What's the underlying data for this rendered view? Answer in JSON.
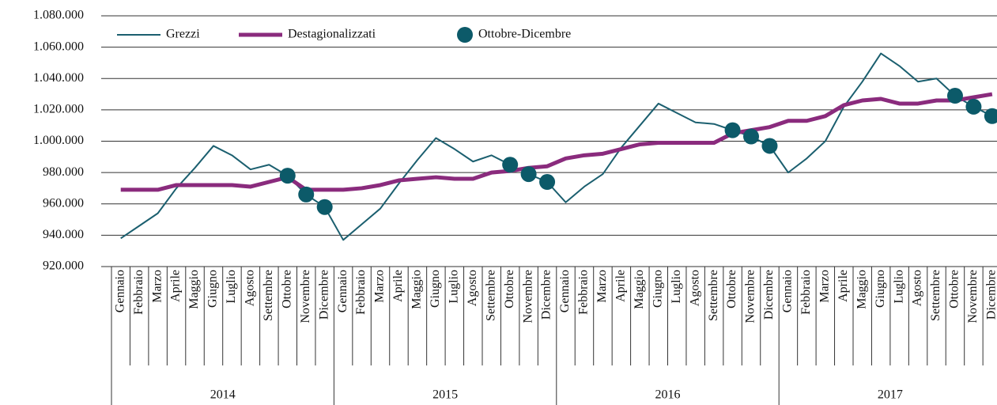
{
  "chart_data": {
    "type": "line",
    "categories": [
      "Gennaio",
      "Febbraio",
      "Marzo",
      "Aprile",
      "Maggio",
      "Giugno",
      "Luglio",
      "Agosto",
      "Settembre",
      "Ottobre",
      "Novembre",
      "Dicembre",
      "Gennaio",
      "Febbraio",
      "Marzo",
      "Aprile",
      "Maggio",
      "Giugno",
      "Luglio",
      "Agosto",
      "Settembre",
      "Ottobre",
      "Novembre",
      "Dicembre",
      "Gennaio",
      "Febbraio",
      "Marzo",
      "Aprile",
      "Maggio",
      "Giugno",
      "Luglio",
      "Agosto",
      "Settembre",
      "Ottobre",
      "Novembre",
      "Dicembre",
      "Gennaio",
      "Febbraio",
      "Marzo",
      "Aprile",
      "Maggio",
      "Giugno",
      "Luglio",
      "Agosto",
      "Settembre",
      "Ottobre",
      "Novembre",
      "Dicembre"
    ],
    "year_groups": [
      "2014",
      "2015",
      "2016",
      "2017"
    ],
    "series": [
      {
        "name": "Grezzi",
        "color": "#1b5f6f",
        "style": "line",
        "values": [
          938000,
          946000,
          954000,
          970000,
          983000,
          997000,
          991000,
          982000,
          985000,
          978000,
          966000,
          958000,
          937000,
          947000,
          957000,
          973000,
          988000,
          1002000,
          995000,
          987000,
          991000,
          985000,
          979000,
          974000,
          961000,
          971000,
          979000,
          996000,
          1010000,
          1024000,
          1018000,
          1012000,
          1011000,
          1007000,
          1003000,
          997000,
          980000,
          989000,
          1000000,
          1022000,
          1038000,
          1056000,
          1048000,
          1038000,
          1040000,
          1029000,
          1022000,
          1016000
        ]
      },
      {
        "name": "Destagionalizzati",
        "color": "#8a2b7d",
        "style": "thick",
        "values": [
          969000,
          969000,
          969000,
          972000,
          972000,
          972000,
          972000,
          971000,
          974000,
          977000,
          969000,
          969000,
          969000,
          970000,
          972000,
          975000,
          976000,
          977000,
          976000,
          976000,
          980000,
          981000,
          983000,
          984000,
          989000,
          991000,
          992000,
          995000,
          998000,
          999000,
          999000,
          999000,
          999000,
          1005000,
          1007000,
          1009000,
          1013000,
          1013000,
          1016000,
          1023000,
          1026000,
          1027000,
          1024000,
          1024000,
          1026000,
          1026000,
          1028000,
          1030000
        ]
      },
      {
        "name": "Ottobre-Dicembre",
        "color": "#0c5a69",
        "style": "dots",
        "values": [
          null,
          null,
          null,
          null,
          null,
          null,
          null,
          null,
          null,
          978000,
          966000,
          958000,
          null,
          null,
          null,
          null,
          null,
          null,
          null,
          null,
          null,
          985000,
          979000,
          974000,
          null,
          null,
          null,
          null,
          null,
          null,
          null,
          null,
          null,
          1007000,
          1003000,
          997000,
          null,
          null,
          null,
          null,
          null,
          null,
          null,
          null,
          null,
          1029000,
          1022000,
          1016000
        ]
      }
    ],
    "ylim": [
      920000,
      1080000
    ],
    "yticks": [
      {
        "value": 920000,
        "label": "920.000"
      },
      {
        "value": 940000,
        "label": "940.000"
      },
      {
        "value": 960000,
        "label": "960.000"
      },
      {
        "value": 980000,
        "label": "980.000"
      },
      {
        "value": 1000000,
        "label": "1.000.000"
      },
      {
        "value": 1020000,
        "label": "1.020.000"
      },
      {
        "value": 1040000,
        "label": "1.040.000"
      },
      {
        "value": 1060000,
        "label": "1.060.000"
      },
      {
        "value": 1080000,
        "label": "1.080.000"
      }
    ],
    "grid": true,
    "legend": "top"
  }
}
